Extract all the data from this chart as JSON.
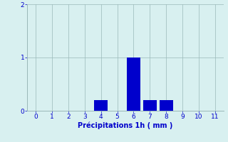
{
  "categories": [
    0,
    1,
    2,
    3,
    4,
    5,
    6,
    7,
    8,
    9,
    10,
    11
  ],
  "values": [
    0,
    0,
    0,
    0,
    0.2,
    0,
    1.0,
    0.2,
    0.2,
    0,
    0,
    0
  ],
  "bar_color": "#0000cc",
  "background_color": "#d8f0f0",
  "grid_color": "#9ab8b8",
  "xlabel": "Précipitations 1h ( mm )",
  "xlabel_color": "#0000cc",
  "tick_color": "#0000cc",
  "ylim": [
    0,
    2
  ],
  "xlim": [
    -0.5,
    11.5
  ],
  "yticks": [
    0,
    1,
    2
  ],
  "xticks": [
    0,
    1,
    2,
    3,
    4,
    5,
    6,
    7,
    8,
    9,
    10,
    11
  ],
  "bar_width": 0.85,
  "figsize": [
    3.2,
    2.0
  ],
  "dpi": 100
}
